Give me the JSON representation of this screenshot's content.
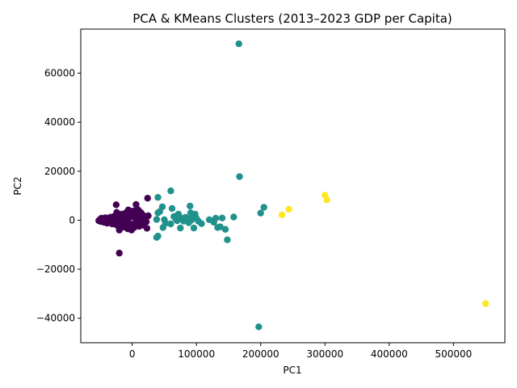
{
  "chart_data": {
    "type": "scatter",
    "title": "PCA & KMeans Clusters (2013–2023 GDP per Capita)",
    "xlabel": "PC1",
    "ylabel": "PC2",
    "xlim": [
      -80000,
      580000
    ],
    "ylim": [
      -50000,
      78000
    ],
    "xticks": [
      0,
      100000,
      200000,
      300000,
      400000,
      500000
    ],
    "xtick_labels": [
      "0",
      "100000",
      "200000",
      "300000",
      "400000",
      "500000"
    ],
    "yticks": [
      -40000,
      -20000,
      0,
      20000,
      40000,
      60000
    ],
    "ytick_labels": [
      "−40000",
      "−20000",
      "0",
      "20000",
      "40000",
      "60000"
    ],
    "grid": false,
    "legend": "none",
    "cluster_colors": [
      "#440154",
      "#21918c",
      "#fde725"
    ],
    "series": [
      {
        "color": "#440154",
        "points": [
          [
            -52000,
            -200
          ],
          [
            -50000,
            300
          ],
          [
            -49000,
            -500
          ],
          [
            -48000,
            800
          ],
          [
            -47000,
            100
          ],
          [
            -46000,
            -300
          ],
          [
            -45000,
            500
          ],
          [
            -44000,
            -800
          ],
          [
            -43000,
            200
          ],
          [
            -42000,
            1000
          ],
          [
            -41000,
            -100
          ],
          [
            -40000,
            600
          ],
          [
            -39000,
            -1200
          ],
          [
            -38000,
            300
          ],
          [
            -37000,
            900
          ],
          [
            -36000,
            -600
          ],
          [
            -35000,
            100
          ],
          [
            -34000,
            1200
          ],
          [
            -33000,
            -400
          ],
          [
            -32000,
            700
          ],
          [
            -31000,
            -1500
          ],
          [
            -30000,
            200
          ],
          [
            -29000,
            1500
          ],
          [
            -28000,
            -200
          ],
          [
            -27000,
            500
          ],
          [
            -26000,
            -900
          ],
          [
            -25000,
            1100
          ],
          [
            -24000,
            -2000
          ],
          [
            -23000,
            300
          ],
          [
            -22000,
            2000
          ],
          [
            -21000,
            -1300
          ],
          [
            -20000,
            600
          ],
          [
            -19000,
            -3000
          ],
          [
            -18000,
            1300
          ],
          [
            -17000,
            -700
          ],
          [
            -16000,
            2500
          ],
          [
            -15000,
            -1800
          ],
          [
            -14000,
            400
          ],
          [
            -13000,
            -2800
          ],
          [
            -12000,
            1700
          ],
          [
            -11000,
            -500
          ],
          [
            -10000,
            3000
          ],
          [
            -9000,
            -2200
          ],
          [
            -8000,
            900
          ],
          [
            -7000,
            -3500
          ],
          [
            -6000,
            2200
          ],
          [
            -5000,
            -1000
          ],
          [
            -4000,
            3500
          ],
          [
            -3000,
            -2600
          ],
          [
            -2000,
            1500
          ],
          [
            -1000,
            -4000
          ],
          [
            0,
            2800
          ],
          [
            1000,
            -1600
          ],
          [
            2000,
            3800
          ],
          [
            3000,
            -3000
          ],
          [
            4000,
            1000
          ],
          [
            5000,
            -2200
          ],
          [
            6000,
            3200
          ],
          [
            7000,
            -800
          ],
          [
            8000,
            4500
          ],
          [
            9000,
            -1800
          ],
          [
            10000,
            2000
          ],
          [
            11000,
            -2500
          ],
          [
            12000,
            1200
          ],
          [
            13000,
            -1000
          ],
          [
            14000,
            3000
          ],
          [
            15000,
            -1500
          ],
          [
            16000,
            600
          ],
          [
            17000,
            -2000
          ],
          [
            18000,
            1800
          ],
          [
            19000,
            -500
          ],
          [
            20000,
            800
          ],
          [
            -25000,
            6300
          ],
          [
            -24000,
            3200
          ],
          [
            -20000,
            -4000
          ],
          [
            -6000,
            4200
          ],
          [
            6000,
            6400
          ],
          [
            10000,
            4000
          ],
          [
            25000,
            1800
          ],
          [
            22000,
            -600
          ],
          [
            23000,
            -3300
          ],
          [
            24000,
            9000
          ],
          [
            -20000,
            -13400
          ]
        ]
      },
      {
        "color": "#21918c",
        "points": [
          [
            166000,
            72000
          ],
          [
            167000,
            17800
          ],
          [
            60000,
            12000
          ],
          [
            40000,
            9300
          ],
          [
            47000,
            5500
          ],
          [
            43000,
            3500
          ],
          [
            40000,
            3000
          ],
          [
            50000,
            200
          ],
          [
            52000,
            -1200
          ],
          [
            48000,
            -3000
          ],
          [
            40000,
            -6500
          ],
          [
            38000,
            -7000
          ],
          [
            38000,
            300
          ],
          [
            62000,
            4800
          ],
          [
            65000,
            1500
          ],
          [
            68000,
            500
          ],
          [
            70000,
            -200
          ],
          [
            72000,
            2500
          ],
          [
            75000,
            -3200
          ],
          [
            78000,
            800
          ],
          [
            80000,
            -400
          ],
          [
            83000,
            1200
          ],
          [
            85000,
            300
          ],
          [
            88000,
            -1000
          ],
          [
            90000,
            5800
          ],
          [
            91000,
            3000
          ],
          [
            93000,
            1500
          ],
          [
            95000,
            2200
          ],
          [
            96000,
            -3200
          ],
          [
            98000,
            2500
          ],
          [
            100000,
            700
          ],
          [
            103000,
            -400
          ],
          [
            108000,
            -1400
          ],
          [
            120000,
            200
          ],
          [
            127000,
            -800
          ],
          [
            130000,
            800
          ],
          [
            133000,
            -3000
          ],
          [
            137000,
            -2700
          ],
          [
            140000,
            900
          ],
          [
            145000,
            -3700
          ],
          [
            148000,
            -8000
          ],
          [
            158000,
            1300
          ],
          [
            200000,
            2900
          ],
          [
            205000,
            5300
          ],
          [
            197000,
            -43500
          ],
          [
            60000,
            -1500
          ],
          [
            70000,
            2000
          ],
          [
            92000,
            0
          ]
        ]
      },
      {
        "color": "#fde725",
        "points": [
          [
            300000,
            10200
          ],
          [
            303000,
            8300
          ],
          [
            244000,
            4500
          ],
          [
            233000,
            2200
          ],
          [
            550000,
            -34000
          ]
        ]
      }
    ]
  }
}
